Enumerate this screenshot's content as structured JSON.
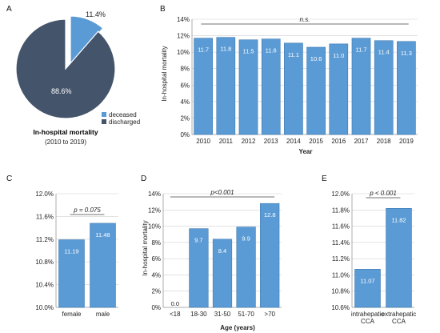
{
  "colors": {
    "deceased": "#5b9bd5",
    "discharged": "#44546a",
    "bar": "#5b9bd5",
    "bar_edge": "#2f6ea8"
  },
  "panels": {
    "A": {
      "letter": "A",
      "caption": "In-hospital mortality",
      "subcaption": "(2010 to 2019)",
      "pie_labels": [
        "11.4%",
        "88.6%"
      ]
    },
    "B": {
      "letter": "B",
      "ylabel": "In-hospital mortality",
      "xlabel": "Year",
      "sig": "n.s."
    },
    "C": {
      "letter": "C",
      "sig": "p = 0.075"
    },
    "D": {
      "letter": "D",
      "ylabel": "In-hospital mortality",
      "xlabel": "Age (years)",
      "sig": "p<0.001"
    },
    "E": {
      "letter": "E",
      "sig": "p < 0.001"
    }
  },
  "chart_data": [
    {
      "panel": "A",
      "type": "pie",
      "title": "In-hospital mortality",
      "subtitle": "(2010 to 2019)",
      "categories": [
        "deceased",
        "discharged"
      ],
      "values": [
        11.4,
        88.6
      ],
      "value_labels": [
        "11.4%",
        "88.6%"
      ],
      "legend": "right"
    },
    {
      "panel": "B",
      "type": "bar",
      "xlabel": "Year",
      "ylabel": "In-hospital mortality",
      "categories": [
        "2010",
        "2011",
        "2012",
        "2013",
        "2014",
        "2015",
        "2016",
        "2017",
        "2018",
        "2019"
      ],
      "values": [
        11.7,
        11.8,
        11.5,
        11.6,
        11.1,
        10.6,
        11.0,
        11.7,
        11.4,
        11.3
      ],
      "value_labels": [
        "11.7",
        "11.8",
        "11.5",
        "11.6",
        "11.1",
        "10.6",
        "11.0",
        "11.7",
        "11.4",
        "11.3"
      ],
      "ylim": [
        0,
        14
      ],
      "yticks": [
        "0%",
        "2%",
        "4%",
        "6%",
        "8%",
        "10%",
        "12%",
        "14%"
      ],
      "annotation": "n.s."
    },
    {
      "panel": "C",
      "type": "bar",
      "xlabel": "",
      "ylabel": "",
      "categories": [
        "female",
        "male"
      ],
      "values": [
        11.19,
        11.48
      ],
      "value_labels": [
        "11.19",
        "11.48"
      ],
      "ylim": [
        10.0,
        12.0
      ],
      "yticks": [
        "10.0%",
        "10.4%",
        "10.8%",
        "11.2%",
        "11.6%",
        "12.0%"
      ],
      "annotation": "p = 0.075"
    },
    {
      "panel": "D",
      "type": "bar",
      "xlabel": "Age (years)",
      "ylabel": "In-hospital mortality",
      "categories": [
        "<18",
        "18-30",
        "31-50",
        "51-70",
        ">70"
      ],
      "values": [
        0.0,
        9.7,
        8.4,
        9.9,
        12.8
      ],
      "value_labels": [
        "0.0",
        "9.7",
        "8.4",
        "9.9",
        "12.8"
      ],
      "ylim": [
        0,
        14
      ],
      "yticks": [
        "0%",
        "2%",
        "4%",
        "6%",
        "8%",
        "10%",
        "12%",
        "14%"
      ],
      "annotation": "p<0.001"
    },
    {
      "panel": "E",
      "type": "bar",
      "xlabel": "",
      "ylabel": "",
      "categories": [
        "intrahepatic\nCCA",
        "extrahepatic\nCCA"
      ],
      "values": [
        11.07,
        11.82
      ],
      "value_labels": [
        "11.07",
        "11.82"
      ],
      "ylim": [
        10.6,
        12.0
      ],
      "yticks": [
        "10.6%",
        "10.8%",
        "11.0%",
        "11.2%",
        "11.4%",
        "11.6%",
        "11.8%",
        "12.0%"
      ],
      "annotation": "p < 0.001"
    }
  ]
}
